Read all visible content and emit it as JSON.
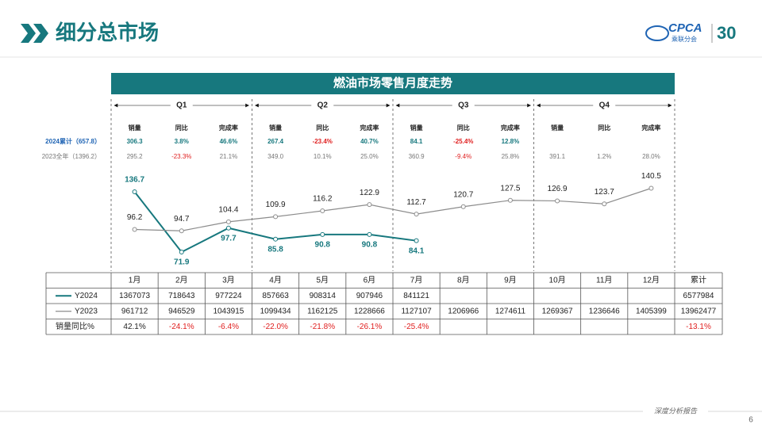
{
  "header": {
    "title": "细分总市场",
    "logo_text": "CPCA",
    "logo_subtitle": "乘联分会",
    "logo_number": "30"
  },
  "chart_data": {
    "type": "line",
    "title": "燃油市场零售月度走势",
    "categories": [
      "1月",
      "2月",
      "3月",
      "4月",
      "5月",
      "6月",
      "7月",
      "8月",
      "9月",
      "10月",
      "11月",
      "12月"
    ],
    "series": [
      {
        "name": "Y2024",
        "color": "#17787e",
        "values": [
          136.7,
          71.9,
          97.7,
          85.8,
          90.8,
          90.8,
          84.1,
          null,
          null,
          null,
          null,
          null
        ]
      },
      {
        "name": "Y2023",
        "color": "#8c8c8c",
        "values": [
          96.2,
          94.7,
          104.4,
          109.9,
          116.2,
          122.9,
          112.7,
          120.7,
          127.5,
          126.9,
          123.7,
          140.5
        ]
      }
    ],
    "quarters": [
      "Q1",
      "Q2",
      "Q3",
      "Q4"
    ],
    "quarter_stats": {
      "headers": [
        "销量",
        "同比",
        "完成率"
      ],
      "rows": [
        {
          "label": "2024累计（657.8）",
          "values": [
            "306.3",
            "3.8%",
            "46.6%",
            "267.4",
            "-23.4%",
            "40.7%",
            "84.1",
            "-25.4%",
            "12.8%",
            null,
            null,
            null
          ]
        },
        {
          "label": "2023全年（1396.2）",
          "values": [
            "295.2",
            "-23.3%",
            "21.1%",
            "349.0",
            "10.1%",
            "25.0%",
            "360.9",
            "-9.4%",
            "25.8%",
            "391.1",
            "1.2%",
            "28.0%"
          ]
        }
      ]
    }
  },
  "table": {
    "total_header": "累计",
    "yoy_label": "销量同比%",
    "rows": [
      [
        1367073,
        718643,
        977224,
        857663,
        908314,
        907946,
        841121,
        null,
        null,
        null,
        null,
        null,
        6577984
      ],
      [
        961712,
        946529,
        1043915,
        1099434,
        1162125,
        1228666,
        1127107,
        1206966,
        1274611,
        1269367,
        1236646,
        1405399,
        13962477
      ],
      [
        "42.1%",
        "-24.1%",
        "-6.4%",
        "-22.0%",
        "-21.8%",
        "-26.1%",
        "-25.4%",
        null,
        null,
        null,
        null,
        null,
        "-13.1%"
      ]
    ]
  },
  "footer": {
    "report": "深度分析报告",
    "page": "6"
  }
}
